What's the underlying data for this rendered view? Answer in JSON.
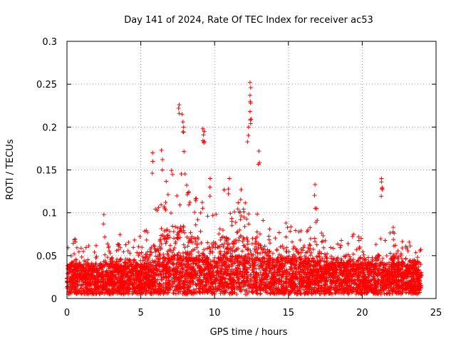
{
  "chart_data": {
    "type": "scatter",
    "title": "Day 141 of 2024, Rate Of TEC Index for receiver ac53",
    "xlabel": "GPS time / hours",
    "ylabel": "ROTI / TECUs",
    "xlim": [
      0,
      25
    ],
    "ylim": [
      0,
      0.3
    ],
    "xticks": [
      0,
      5,
      10,
      15,
      20,
      25
    ],
    "xtick_labels": [
      "0",
      "5",
      "10",
      "15",
      "20",
      "25"
    ],
    "yticks": [
      0,
      0.05,
      0.1,
      0.15,
      0.2,
      0.25,
      0.3
    ],
    "ytick_labels": [
      "0",
      "0.05",
      "0.1",
      "0.15",
      "0.2",
      "0.25",
      "0.3"
    ],
    "grid": true,
    "marker": "+",
    "color": "#ff0000",
    "data_x_range": [
      0,
      24
    ],
    "notable_points": [
      {
        "x": 2.5,
        "y": 0.098
      },
      {
        "x": 5.8,
        "y": 0.17
      },
      {
        "x": 6.4,
        "y": 0.173
      },
      {
        "x": 7.6,
        "y": 0.226
      },
      {
        "x": 7.8,
        "y": 0.215
      },
      {
        "x": 7.9,
        "y": 0.2
      },
      {
        "x": 9.2,
        "y": 0.198
      },
      {
        "x": 9.3,
        "y": 0.195
      },
      {
        "x": 9.7,
        "y": 0.14
      },
      {
        "x": 11.0,
        "y": 0.14
      },
      {
        "x": 11.8,
        "y": 0.127
      },
      {
        "x": 12.4,
        "y": 0.252
      },
      {
        "x": 12.4,
        "y": 0.237
      },
      {
        "x": 12.4,
        "y": 0.218
      },
      {
        "x": 12.3,
        "y": 0.2
      },
      {
        "x": 13.0,
        "y": 0.172
      },
      {
        "x": 16.8,
        "y": 0.133
      },
      {
        "x": 16.9,
        "y": 0.105
      },
      {
        "x": 21.3,
        "y": 0.14
      },
      {
        "x": 21.3,
        "y": 0.136
      },
      {
        "x": 22.1,
        "y": 0.083
      }
    ],
    "envelope": {
      "x": [
        0,
        0.5,
        1,
        1.5,
        2,
        2.5,
        3,
        3.5,
        4,
        4.5,
        5,
        5.5,
        6,
        6.5,
        7,
        7.5,
        8,
        8.5,
        9,
        9.5,
        10,
        10.5,
        11,
        11.5,
        12,
        12.5,
        13,
        13.5,
        14,
        14.5,
        15,
        15.5,
        16,
        16.5,
        17,
        17.5,
        18,
        18.5,
        19,
        19.5,
        20,
        20.5,
        21,
        21.5,
        22,
        22.5,
        23,
        23.5,
        24
      ],
      "base": [
        0.018,
        0.02,
        0.02,
        0.02,
        0.02,
        0.02,
        0.02,
        0.02,
        0.02,
        0.02,
        0.02,
        0.022,
        0.025,
        0.028,
        0.03,
        0.032,
        0.03,
        0.028,
        0.028,
        0.028,
        0.028,
        0.028,
        0.03,
        0.03,
        0.03,
        0.03,
        0.028,
        0.028,
        0.028,
        0.028,
        0.03,
        0.028,
        0.026,
        0.025,
        0.025,
        0.024,
        0.023,
        0.022,
        0.022,
        0.022,
        0.022,
        0.022,
        0.022,
        0.022,
        0.022,
        0.022,
        0.02,
        0.02,
        0.02
      ],
      "spread": [
        0.05,
        0.06,
        0.055,
        0.055,
        0.055,
        0.055,
        0.06,
        0.065,
        0.065,
        0.06,
        0.065,
        0.085,
        0.1,
        0.13,
        0.14,
        0.15,
        0.14,
        0.12,
        0.11,
        0.1,
        0.11,
        0.12,
        0.11,
        0.1,
        0.11,
        0.12,
        0.09,
        0.08,
        0.075,
        0.08,
        0.08,
        0.07,
        0.07,
        0.075,
        0.075,
        0.06,
        0.06,
        0.06,
        0.07,
        0.065,
        0.06,
        0.06,
        0.065,
        0.075,
        0.07,
        0.065,
        0.06,
        0.055,
        0.05
      ]
    }
  }
}
